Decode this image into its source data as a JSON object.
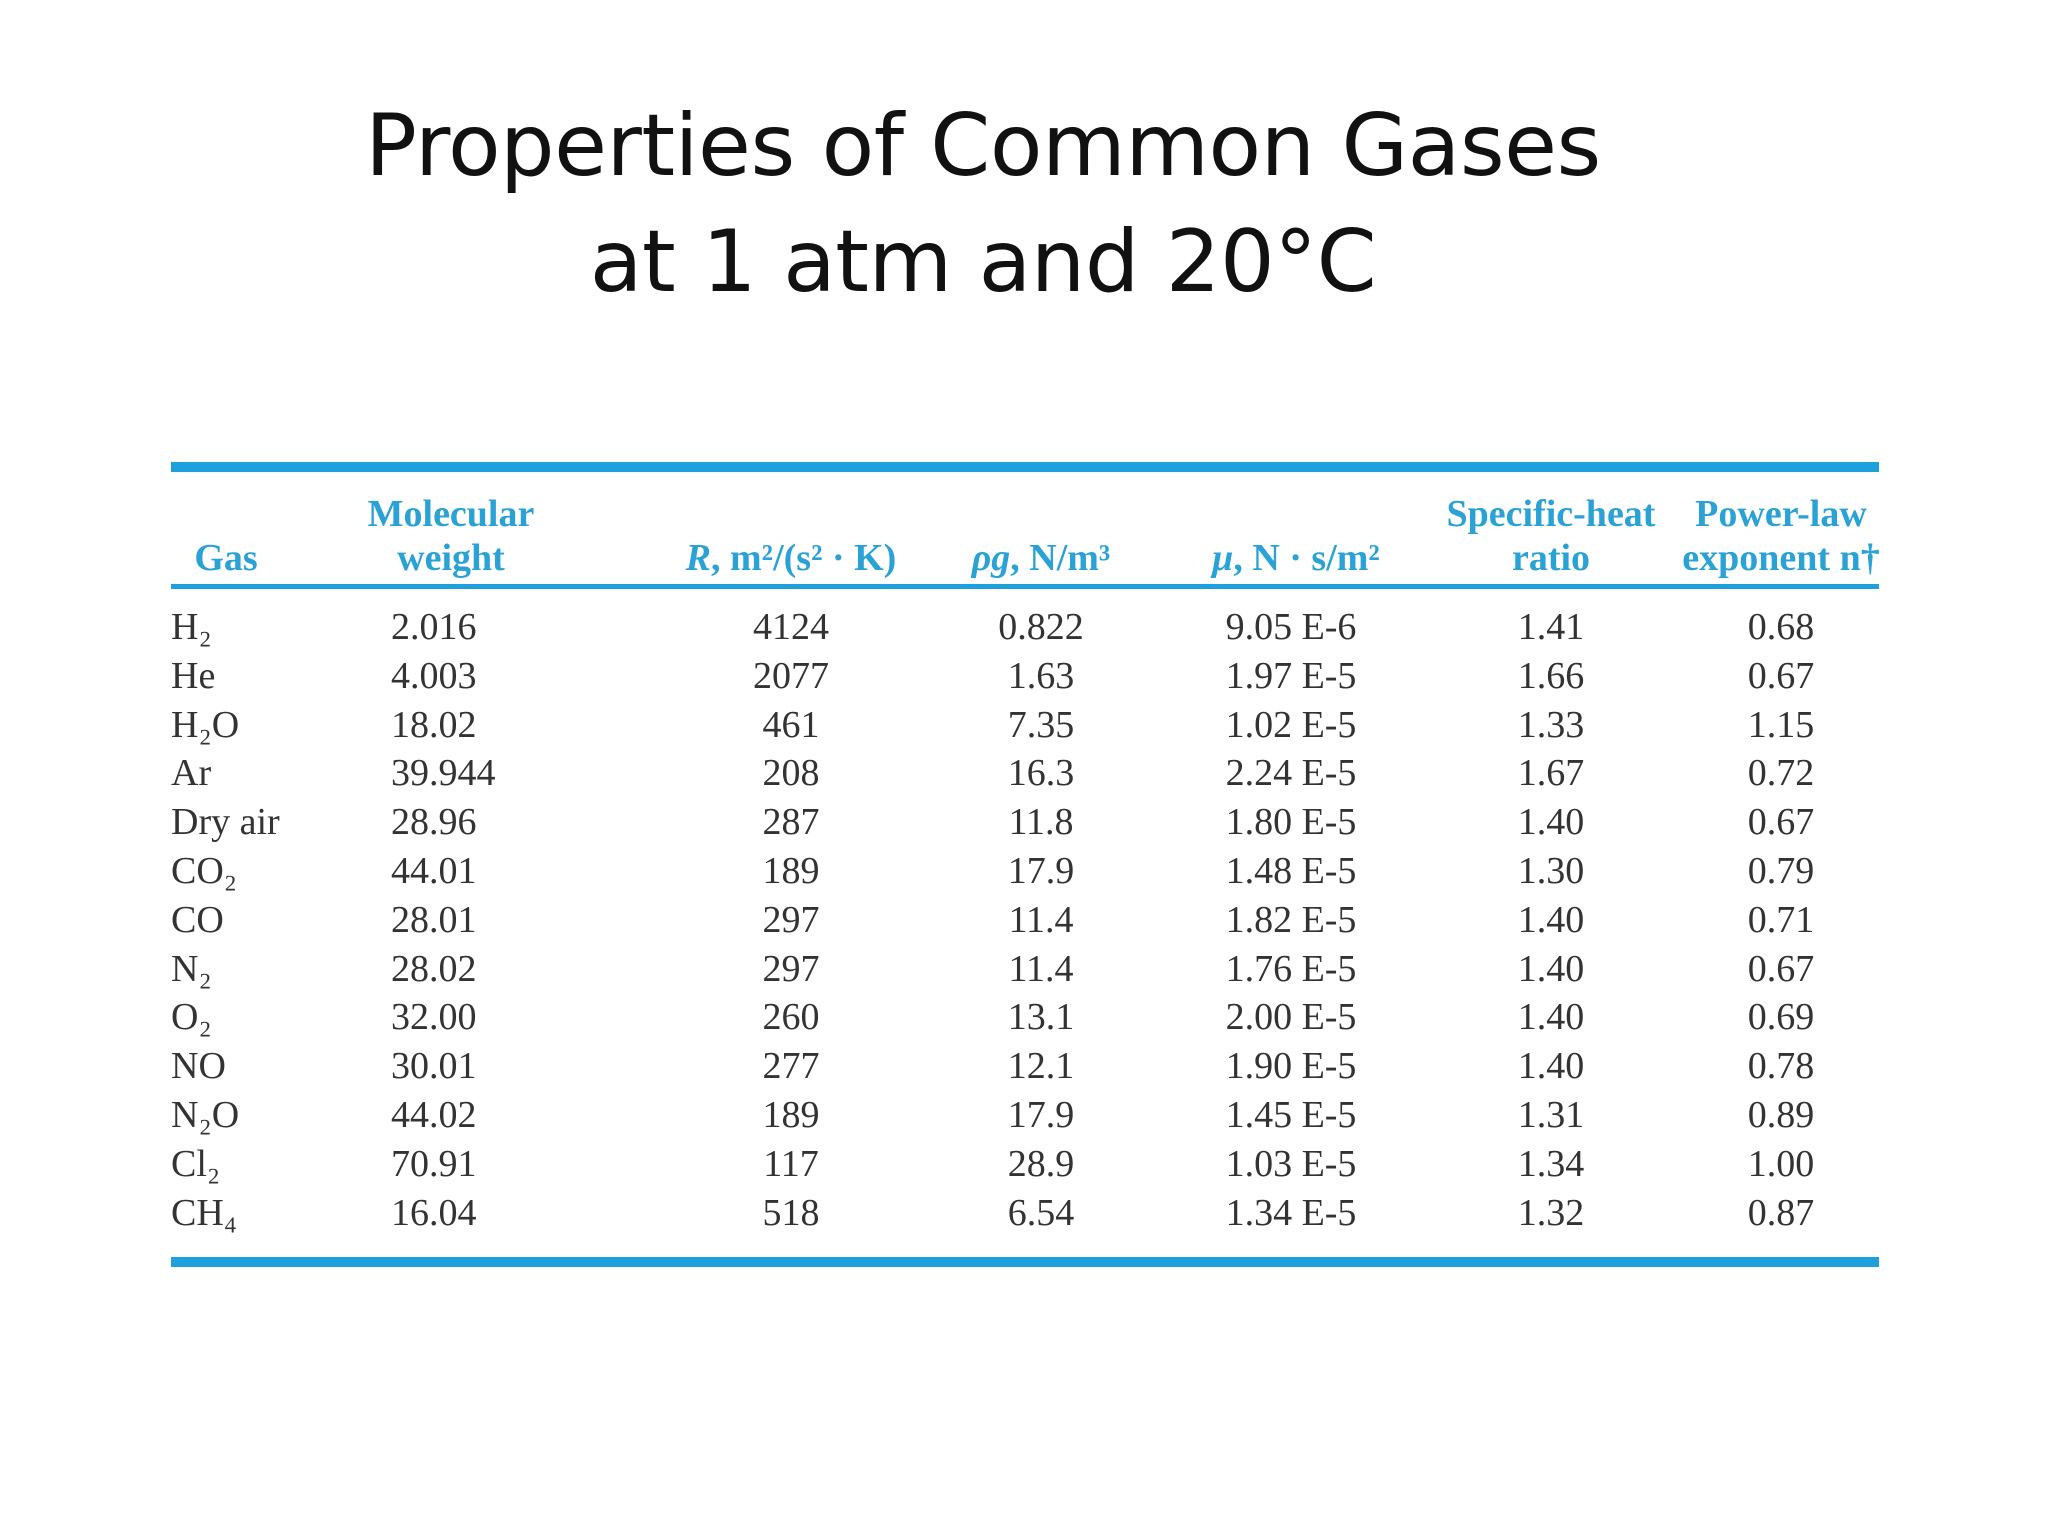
{
  "title": {
    "line1": "Properties of Common Gases",
    "line2": "at 1 atm and 20°C"
  },
  "table": {
    "headers": {
      "gas": "Gas",
      "mw_line1": "Molecular",
      "mw_line2": "weight",
      "r_symbol": "R",
      "r_unit": ", m²/(s² · K)",
      "rho_symbol": "ρg",
      "rho_unit": ", N/m³",
      "mu_symbol": "μ",
      "mu_unit": ", N · s/m²",
      "k_line1": "Specific-heat",
      "k_line2": "ratio",
      "n_line1": "Power-law",
      "n_line2": "exponent n†"
    },
    "rows": [
      {
        "gas": "H₂",
        "mw": "2.016",
        "r": "4124",
        "rho": "0.822",
        "mu": "9.05 E-6",
        "k": "1.41",
        "n": "0.68"
      },
      {
        "gas": "He",
        "mw": "4.003",
        "r": "2077",
        "rho": "1.63",
        "mu": "1.97 E-5",
        "k": "1.66",
        "n": "0.67"
      },
      {
        "gas": "H₂O",
        "mw": "18.02",
        "r": "461",
        "rho": "7.35",
        "mu": "1.02 E-5",
        "k": "1.33",
        "n": "1.15"
      },
      {
        "gas": "Ar",
        "mw": "39.944",
        "r": "208",
        "rho": "16.3",
        "mu": "2.24 E-5",
        "k": "1.67",
        "n": "0.72"
      },
      {
        "gas": "Dry air",
        "mw": "28.96",
        "r": "287",
        "rho": "11.8",
        "mu": "1.80 E-5",
        "k": "1.40",
        "n": "0.67"
      },
      {
        "gas": "CO₂",
        "mw": "44.01",
        "r": "189",
        "rho": "17.9",
        "mu": "1.48 E-5",
        "k": "1.30",
        "n": "0.79"
      },
      {
        "gas": "CO",
        "mw": "28.01",
        "r": "297",
        "rho": "11.4",
        "mu": "1.82 E-5",
        "k": "1.40",
        "n": "0.71"
      },
      {
        "gas": "N₂",
        "mw": "28.02",
        "r": "297",
        "rho": "11.4",
        "mu": "1.76 E-5",
        "k": "1.40",
        "n": "0.67"
      },
      {
        "gas": "O₂",
        "mw": "32.00",
        "r": "260",
        "rho": "13.1",
        "mu": "2.00 E-5",
        "k": "1.40",
        "n": "0.69"
      },
      {
        "gas": "NO",
        "mw": "30.01",
        "r": "277",
        "rho": "12.1",
        "mu": "1.90 E-5",
        "k": "1.40",
        "n": "0.78"
      },
      {
        "gas": "N₂O",
        "mw": "44.02",
        "r": "189",
        "rho": "17.9",
        "mu": "1.45 E-5",
        "k": "1.31",
        "n": "0.89"
      },
      {
        "gas": "Cl₂",
        "mw": "70.91",
        "r": "117",
        "rho": "28.9",
        "mu": "1.03 E-5",
        "k": "1.34",
        "n": "1.00"
      },
      {
        "gas": "CH₄",
        "mw": "16.04",
        "r": "518",
        "rho": "6.54",
        "mu": "1.34 E-5",
        "k": "1.32",
        "n": "0.87"
      }
    ]
  },
  "colors": {
    "rule": "#1ea0dc",
    "header_text": "#2aa2d6",
    "body_text": "#333333",
    "title_text": "#111111"
  }
}
